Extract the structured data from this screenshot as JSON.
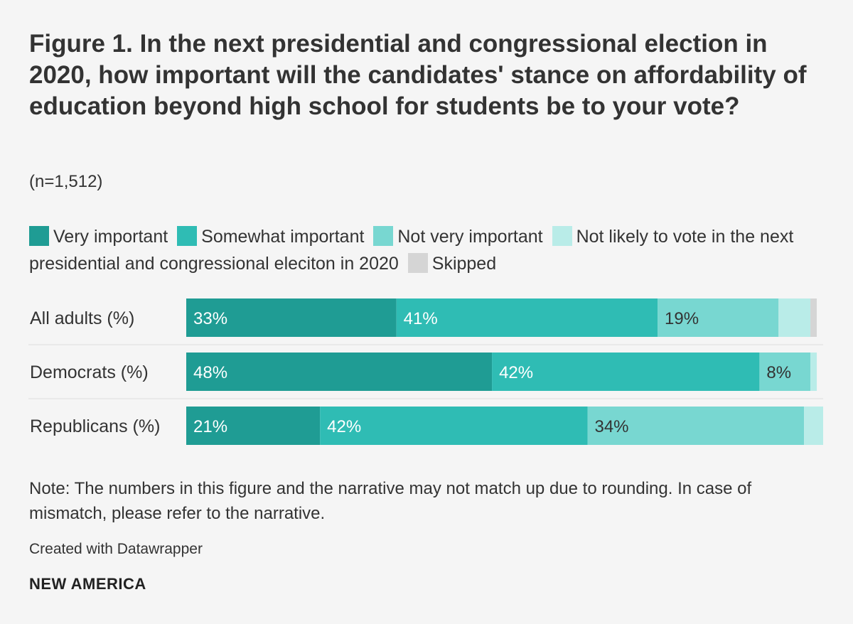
{
  "title": "Figure 1. In the next presidential and congressional election in 2020, how important will the candidates' stance on affordability of education beyond high school for students be to your vote?",
  "subtitle": "(n=1,512)",
  "note": "Note: The numbers in this figure and the narrative may not match up due to rounding. In case of mismatch, please refer to the narrative.",
  "credit": "Created with Datawrapper",
  "brand": "NEW AMERICA",
  "chart_data": {
    "type": "bar",
    "orientation": "horizontal-stacked",
    "categories": [
      "All adults (%)",
      "Democrats (%)",
      "Republicans (%)"
    ],
    "series": [
      {
        "name": "Very important",
        "color": "#1f9c94",
        "values": [
          33,
          48,
          21
        ],
        "labels": [
          "33%",
          "48%",
          "21%"
        ]
      },
      {
        "name": "Somewhat important",
        "color": "#2fbcb4",
        "values": [
          41,
          42,
          42
        ],
        "labels": [
          "41%",
          "42%",
          "42%"
        ]
      },
      {
        "name": "Not very important",
        "color": "#78d7d1",
        "values": [
          19,
          8,
          34
        ],
        "labels": [
          "19%",
          "8%",
          "34%"
        ]
      },
      {
        "name": "Not likely to vote in the next presidential and congressional eleciton in 2020",
        "color": "#b9ece8",
        "values": [
          5,
          1,
          3
        ],
        "labels": [
          "",
          "",
          ""
        ]
      },
      {
        "name": "Skipped",
        "color": "#d5d5d5",
        "values": [
          1,
          0,
          0
        ],
        "labels": [
          "",
          "",
          ""
        ]
      }
    ],
    "xlim": [
      0,
      100
    ],
    "grid": false,
    "legend": "top"
  }
}
